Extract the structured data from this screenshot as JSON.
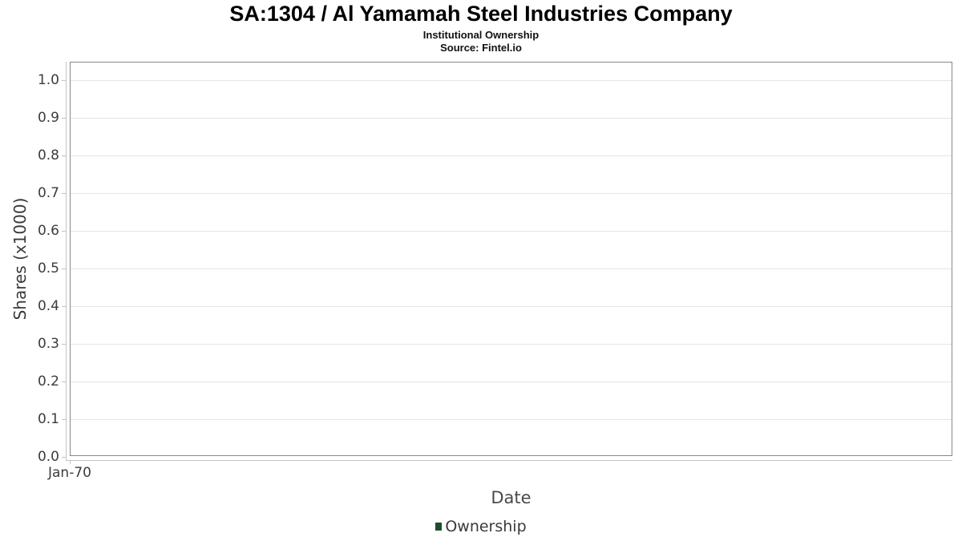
{
  "header": {
    "title": "SA:1304 / Al Yamamah Steel Industries Company",
    "subtitle": "Institutional Ownership",
    "source": "Source: Fintel.io"
  },
  "axes": {
    "y_label": "Shares (x1000)",
    "x_label": "Date",
    "y_tick_labels": [
      "1.0",
      "0.9",
      "0.8",
      "0.7",
      "0.6",
      "0.5",
      "0.4",
      "0.3",
      "0.2",
      "0.1",
      "0.0"
    ],
    "x_tick_labels": [
      "Jan-70"
    ]
  },
  "legend": {
    "items": [
      {
        "label": "Ownership",
        "marker_color": "#1e4d2b"
      }
    ]
  },
  "colors": {
    "grid": "#e5e5e5",
    "plot_border": "#878787",
    "axis_line": "#c3c3c3",
    "tick_text": "#3c3c3c",
    "legend_marker": "#1e4d2b",
    "background": "#ffffff"
  },
  "chart_data": {
    "type": "line",
    "title": "SA:1304 / Al Yamamah Steel Industries Company",
    "subtitle": "Institutional Ownership",
    "source": "Source: Fintel.io",
    "xlabel": "Date",
    "ylabel": "Shares (x1000)",
    "x_tick_labels": [
      "Jan-70"
    ],
    "y_ticks": [
      0.0,
      0.1,
      0.2,
      0.3,
      0.4,
      0.5,
      0.6,
      0.7,
      0.8,
      0.9,
      1.0
    ],
    "ylim": [
      0,
      1.05
    ],
    "grid": true,
    "legend_position": "bottom",
    "series": [
      {
        "name": "Ownership",
        "color": "#1e4d2b",
        "x": [],
        "values": []
      }
    ]
  }
}
